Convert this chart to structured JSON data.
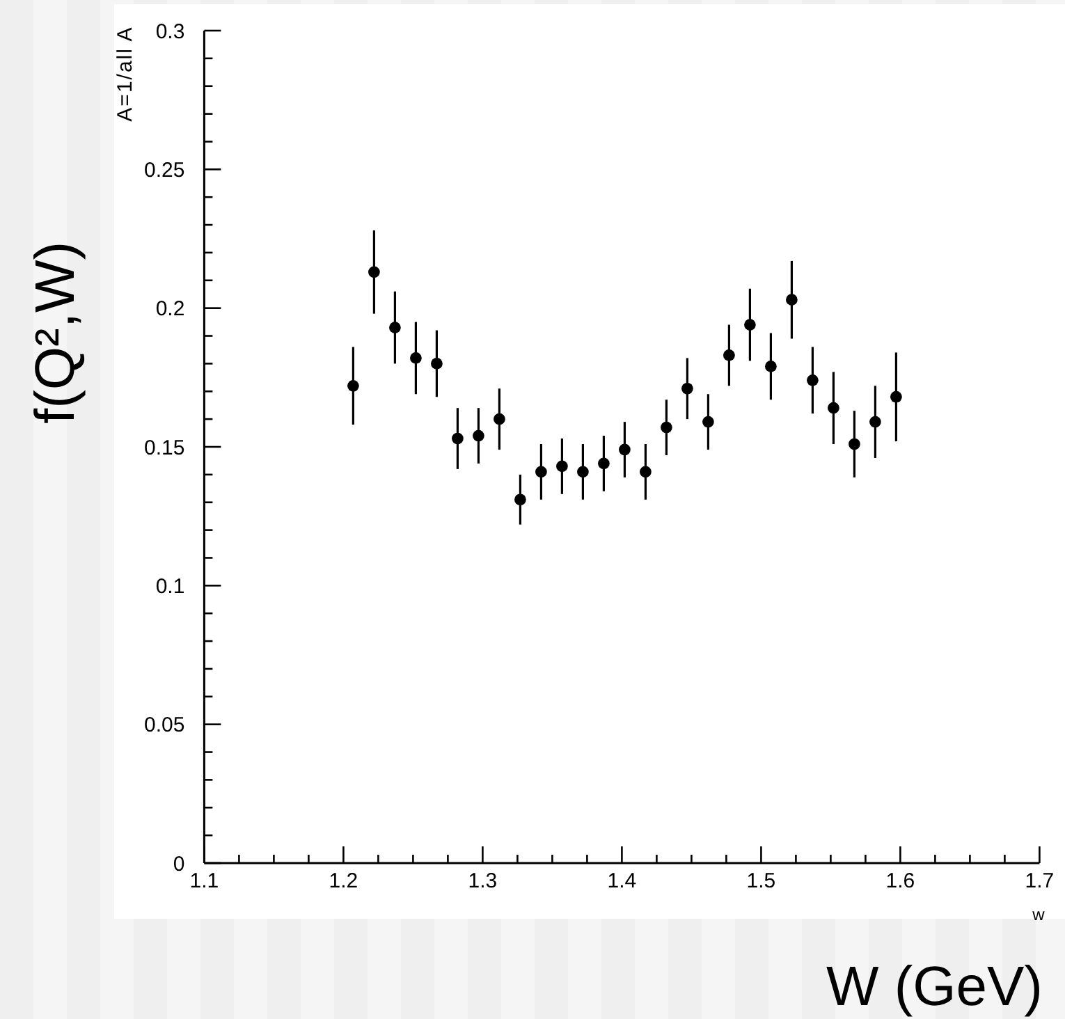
{
  "chart_data": {
    "type": "scatter",
    "xlabel": "W (GeV)",
    "ylabel": "f(Q²,W)",
    "annotations": [
      "A=1/all A",
      "w"
    ],
    "x": [
      1.207,
      1.222,
      1.237,
      1.252,
      1.267,
      1.282,
      1.297,
      1.312,
      1.327,
      1.342,
      1.357,
      1.372,
      1.387,
      1.402,
      1.417,
      1.432,
      1.447,
      1.462,
      1.477,
      1.492,
      1.507,
      1.522,
      1.537,
      1.552,
      1.567,
      1.582,
      1.597
    ],
    "values": [
      0.172,
      0.213,
      0.193,
      0.182,
      0.18,
      0.153,
      0.154,
      0.16,
      0.131,
      0.141,
      0.143,
      0.141,
      0.144,
      0.149,
      0.141,
      0.157,
      0.171,
      0.159,
      0.183,
      0.194,
      0.179,
      0.203,
      0.174,
      0.164,
      0.151,
      0.159,
      0.168
    ],
    "errors": [
      0.014,
      0.015,
      0.013,
      0.013,
      0.012,
      0.011,
      0.01,
      0.011,
      0.009,
      0.01,
      0.01,
      0.01,
      0.01,
      0.01,
      0.01,
      0.01,
      0.011,
      0.01,
      0.011,
      0.013,
      0.012,
      0.014,
      0.012,
      0.013,
      0.012,
      0.013,
      0.016
    ],
    "color": "#000000",
    "marker": "circle",
    "xlim": [
      1.1,
      1.7
    ],
    "xticks": [
      1.1,
      {
        "value": 1.125,
        "label": null
      },
      {
        "value": 1.15,
        "label": null
      },
      {
        "value": 1.175,
        "label": null
      },
      1.2,
      {
        "value": 1.225,
        "label": null
      },
      {
        "value": 1.25,
        "label": null
      },
      {
        "value": 1.275,
        "label": null
      },
      1.3,
      {
        "value": 1.325,
        "label": null
      },
      {
        "value": 1.35,
        "label": null
      },
      {
        "value": 1.375,
        "label": null
      },
      1.4,
      {
        "value": 1.425,
        "label": null
      },
      {
        "value": 1.45,
        "label": null
      },
      {
        "value": 1.475,
        "label": null
      },
      1.5,
      {
        "value": 1.525,
        "label": null
      },
      {
        "value": 1.55,
        "label": null
      },
      {
        "value": 1.575,
        "label": null
      },
      1.6,
      {
        "value": 1.625,
        "label": null
      },
      {
        "value": 1.65,
        "label": null
      },
      {
        "value": 1.675,
        "label": null
      },
      1.7
    ],
    "ylim": [
      0,
      0.3
    ],
    "yticks": [
      0,
      {
        "value": 0.01,
        "label": null
      },
      {
        "value": 0.02,
        "label": null
      },
      {
        "value": 0.03,
        "label": null
      },
      {
        "value": 0.04,
        "label": null
      },
      0.05,
      {
        "value": 0.06,
        "label": null
      },
      {
        "value": 0.07,
        "label": null
      },
      {
        "value": 0.08,
        "label": null
      },
      {
        "value": 0.09,
        "label": null
      },
      0.1,
      {
        "value": 0.11,
        "label": null
      },
      {
        "value": 0.12,
        "label": null
      },
      {
        "value": 0.13,
        "label": null
      },
      {
        "value": 0.14,
        "label": null
      },
      0.15,
      {
        "value": 0.16,
        "label": null
      },
      {
        "value": 0.17,
        "label": null
      },
      {
        "value": 0.18,
        "label": null
      },
      {
        "value": 0.19,
        "label": null
      },
      0.2,
      {
        "value": 0.21,
        "label": null
      },
      {
        "value": 0.22,
        "label": null
      },
      {
        "value": 0.23,
        "label": null
      },
      {
        "value": 0.24,
        "label": null
      },
      0.25,
      {
        "value": 0.26,
        "label": null
      },
      {
        "value": 0.27,
        "label": null
      },
      {
        "value": 0.28,
        "label": null
      },
      {
        "value": 0.29,
        "label": null
      },
      0.3
    ]
  }
}
